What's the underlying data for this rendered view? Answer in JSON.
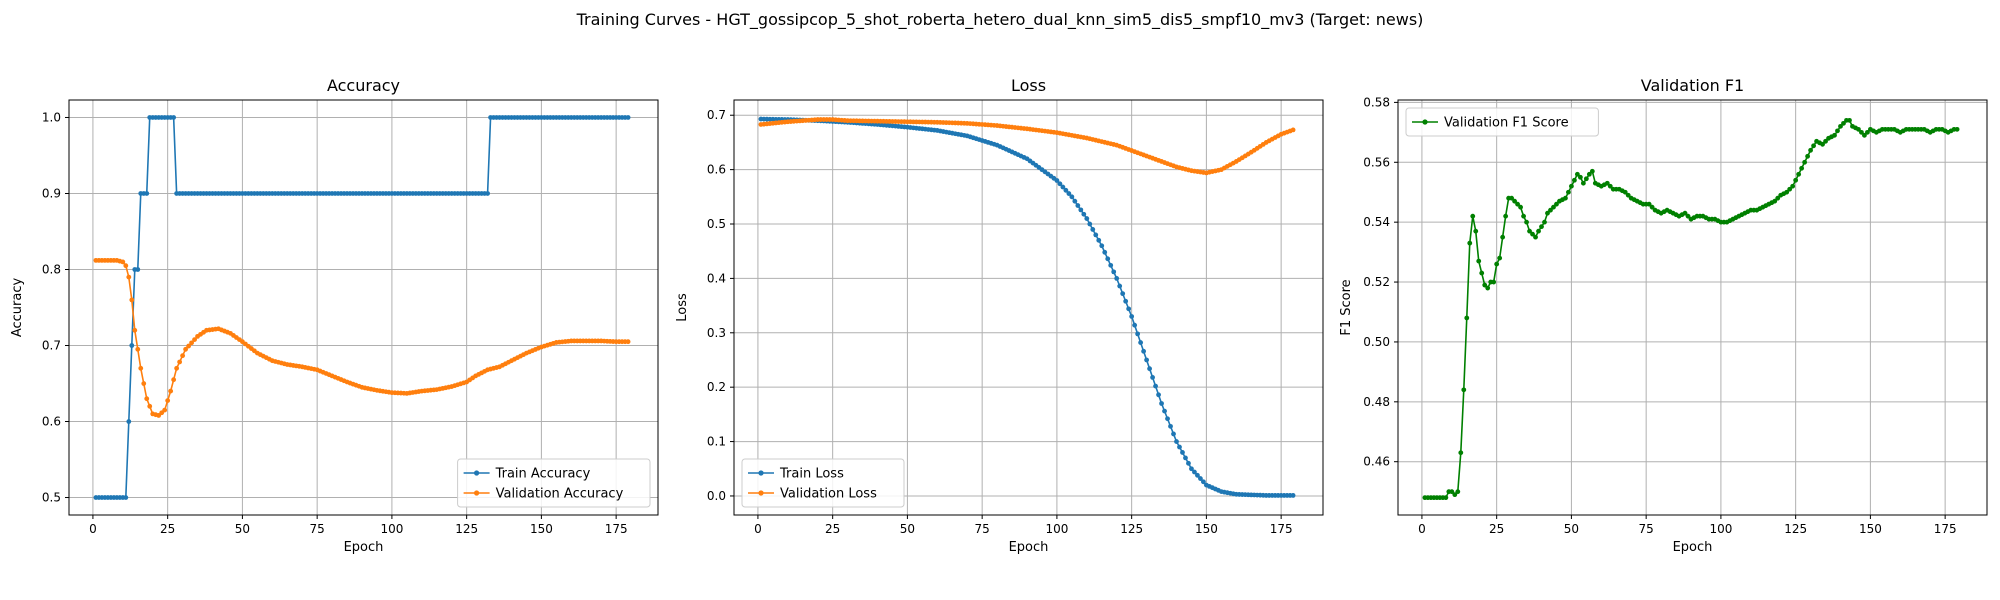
{
  "suptitle": "Training Curves - HGT_gossipcop_5_shot_roberta_hetero_dual_knn_sim5_dis5_smpf10_mv3 (Target: news)",
  "colors": {
    "blue": "#1f77b4",
    "orange": "#ff7f0e",
    "green": "#008000",
    "grid": "#b0b0b0"
  },
  "chart_data": [
    {
      "type": "line",
      "title": "Accuracy",
      "xlabel": "Epoch",
      "ylabel": "Accuracy",
      "xlim": [
        -8,
        189
      ],
      "ylim": [
        0.477,
        1.023
      ],
      "xticks": [
        0,
        25,
        50,
        75,
        100,
        125,
        150,
        175
      ],
      "yticks": [
        0.5,
        0.6,
        0.7,
        0.8,
        0.9,
        1.0
      ],
      "ytick_labels": [
        "0.5",
        "0.6",
        "0.7",
        "0.8",
        "0.9",
        "1.0"
      ],
      "grid": true,
      "legend_position": "lower-right",
      "series": [
        {
          "name": "Train Accuracy",
          "color": "#1f77b4",
          "points": [
            [
              1,
              0.5
            ],
            [
              11,
              0.5
            ],
            [
              12,
              0.6
            ],
            [
              13,
              0.7
            ],
            [
              14,
              0.8
            ],
            [
              15,
              0.8
            ],
            [
              16,
              0.9
            ],
            [
              18,
              0.9
            ],
            [
              19,
              1.0
            ],
            [
              27,
              1.0
            ],
            [
              28,
              0.9
            ],
            [
              132,
              0.9
            ],
            [
              133,
              1.0
            ],
            [
              179,
              1.0
            ]
          ]
        },
        {
          "name": "Validation Accuracy",
          "color": "#ff7f0e",
          "points": [
            [
              1,
              0.812
            ],
            [
              8,
              0.812
            ],
            [
              10,
              0.81
            ],
            [
              11,
              0.805
            ],
            [
              12,
              0.79
            ],
            [
              13,
              0.76
            ],
            [
              14,
              0.72
            ],
            [
              16,
              0.67
            ],
            [
              18,
              0.63
            ],
            [
              20,
              0.61
            ],
            [
              22,
              0.608
            ],
            [
              24,
              0.615
            ],
            [
              26,
              0.64
            ],
            [
              28,
              0.67
            ],
            [
              31,
              0.695
            ],
            [
              35,
              0.712
            ],
            [
              38,
              0.72
            ],
            [
              42,
              0.722
            ],
            [
              46,
              0.716
            ],
            [
              50,
              0.705
            ],
            [
              55,
              0.69
            ],
            [
              60,
              0.68
            ],
            [
              65,
              0.675
            ],
            [
              70,
              0.672
            ],
            [
              75,
              0.668
            ],
            [
              80,
              0.66
            ],
            [
              85,
              0.652
            ],
            [
              90,
              0.645
            ],
            [
              95,
              0.641
            ],
            [
              100,
              0.638
            ],
            [
              105,
              0.637
            ],
            [
              110,
              0.64
            ],
            [
              115,
              0.642
            ],
            [
              120,
              0.646
            ],
            [
              125,
              0.652
            ],
            [
              128,
              0.66
            ],
            [
              132,
              0.668
            ],
            [
              136,
              0.672
            ],
            [
              140,
              0.68
            ],
            [
              145,
              0.69
            ],
            [
              150,
              0.698
            ],
            [
              155,
              0.704
            ],
            [
              160,
              0.706
            ],
            [
              165,
              0.706
            ],
            [
              170,
              0.706
            ],
            [
              175,
              0.705
            ],
            [
              179,
              0.705
            ]
          ]
        }
      ]
    },
    {
      "type": "line",
      "title": "Loss",
      "xlabel": "Epoch",
      "ylabel": "Loss",
      "xlim": [
        -8,
        189
      ],
      "ylim": [
        -0.035,
        0.728
      ],
      "xticks": [
        0,
        25,
        50,
        75,
        100,
        125,
        150,
        175
      ],
      "yticks": [
        0.0,
        0.1,
        0.2,
        0.3,
        0.4,
        0.5,
        0.6,
        0.7
      ],
      "ytick_labels": [
        "0.0",
        "0.1",
        "0.2",
        "0.3",
        "0.4",
        "0.5",
        "0.6",
        "0.7"
      ],
      "grid": true,
      "legend_position": "lower-left",
      "series": [
        {
          "name": "Train Loss",
          "color": "#1f77b4",
          "points": [
            [
              1,
              0.693
            ],
            [
              10,
              0.692
            ],
            [
              20,
              0.69
            ],
            [
              30,
              0.687
            ],
            [
              40,
              0.683
            ],
            [
              50,
              0.678
            ],
            [
              60,
              0.672
            ],
            [
              70,
              0.662
            ],
            [
              80,
              0.645
            ],
            [
              90,
              0.62
            ],
            [
              100,
              0.58
            ],
            [
              105,
              0.55
            ],
            [
              110,
              0.51
            ],
            [
              115,
              0.46
            ],
            [
              120,
              0.4
            ],
            [
              125,
              0.33
            ],
            [
              130,
              0.25
            ],
            [
              135,
              0.17
            ],
            [
              140,
              0.1
            ],
            [
              145,
              0.05
            ],
            [
              150,
              0.02
            ],
            [
              155,
              0.008
            ],
            [
              160,
              0.003
            ],
            [
              170,
              0.001
            ],
            [
              179,
              0.001
            ]
          ]
        },
        {
          "name": "Validation Loss",
          "color": "#ff7f0e",
          "points": [
            [
              1,
              0.683
            ],
            [
              10,
              0.688
            ],
            [
              20,
              0.692
            ],
            [
              25,
              0.692
            ],
            [
              30,
              0.69
            ],
            [
              40,
              0.689
            ],
            [
              50,
              0.688
            ],
            [
              60,
              0.687
            ],
            [
              70,
              0.685
            ],
            [
              80,
              0.681
            ],
            [
              90,
              0.675
            ],
            [
              100,
              0.668
            ],
            [
              110,
              0.658
            ],
            [
              120,
              0.645
            ],
            [
              130,
              0.625
            ],
            [
              140,
              0.605
            ],
            [
              145,
              0.598
            ],
            [
              150,
              0.594
            ],
            [
              155,
              0.6
            ],
            [
              160,
              0.615
            ],
            [
              165,
              0.632
            ],
            [
              170,
              0.65
            ],
            [
              175,
              0.665
            ],
            [
              179,
              0.673
            ]
          ]
        }
      ]
    },
    {
      "type": "line",
      "title": "Validation F1",
      "xlabel": "Epoch",
      "ylabel": "F1 Score",
      "xlim": [
        -8,
        189
      ],
      "ylim": [
        0.4422,
        0.5808
      ],
      "xticks": [
        0,
        25,
        50,
        75,
        100,
        125,
        150,
        175
      ],
      "yticks": [
        0.46,
        0.48,
        0.5,
        0.52,
        0.54,
        0.56,
        0.58
      ],
      "ytick_labels": [
        "0.46",
        "0.48",
        "0.50",
        "0.52",
        "0.54",
        "0.56",
        "0.58"
      ],
      "grid": true,
      "legend_position": "upper-left",
      "series": [
        {
          "name": "Validation F1 Score",
          "color": "#008000",
          "points": [
            [
              1,
              0.448
            ],
            [
              8,
              0.448
            ],
            [
              9,
              0.45
            ],
            [
              10,
              0.45
            ],
            [
              11,
              0.449
            ],
            [
              12,
              0.45
            ],
            [
              13,
              0.463
            ],
            [
              14,
              0.484
            ],
            [
              15,
              0.508
            ],
            [
              16,
              0.533
            ],
            [
              17,
              0.542
            ],
            [
              18,
              0.537
            ],
            [
              19,
              0.527
            ],
            [
              20,
              0.523
            ],
            [
              21,
              0.519
            ],
            [
              22,
              0.518
            ],
            [
              23,
              0.52
            ],
            [
              24,
              0.52
            ],
            [
              25,
              0.526
            ],
            [
              26,
              0.528
            ],
            [
              27,
              0.535
            ],
            [
              28,
              0.542
            ],
            [
              29,
              0.548
            ],
            [
              30,
              0.548
            ],
            [
              31,
              0.547
            ],
            [
              33,
              0.545
            ],
            [
              34,
              0.542
            ],
            [
              35,
              0.54
            ],
            [
              36,
              0.537
            ],
            [
              37,
              0.536
            ],
            [
              38,
              0.535
            ],
            [
              39,
              0.537
            ],
            [
              41,
              0.54
            ],
            [
              42,
              0.543
            ],
            [
              44,
              0.545
            ],
            [
              46,
              0.547
            ],
            [
              48,
              0.548
            ],
            [
              50,
              0.552
            ],
            [
              52,
              0.556
            ],
            [
              53,
              0.555
            ],
            [
              54,
              0.553
            ],
            [
              56,
              0.556
            ],
            [
              57,
              0.557
            ],
            [
              58,
              0.553
            ],
            [
              60,
              0.552
            ],
            [
              62,
              0.553
            ],
            [
              64,
              0.551
            ],
            [
              66,
              0.551
            ],
            [
              68,
              0.55
            ],
            [
              70,
              0.548
            ],
            [
              72,
              0.547
            ],
            [
              74,
              0.546
            ],
            [
              76,
              0.546
            ],
            [
              78,
              0.544
            ],
            [
              80,
              0.543
            ],
            [
              82,
              0.544
            ],
            [
              84,
              0.543
            ],
            [
              86,
              0.542
            ],
            [
              88,
              0.543
            ],
            [
              90,
              0.541
            ],
            [
              92,
              0.542
            ],
            [
              94,
              0.542
            ],
            [
              96,
              0.541
            ],
            [
              98,
              0.541
            ],
            [
              100,
              0.54
            ],
            [
              102,
              0.54
            ],
            [
              104,
              0.541
            ],
            [
              106,
              0.542
            ],
            [
              108,
              0.543
            ],
            [
              110,
              0.544
            ],
            [
              112,
              0.544
            ],
            [
              114,
              0.545
            ],
            [
              116,
              0.546
            ],
            [
              118,
              0.547
            ],
            [
              120,
              0.549
            ],
            [
              122,
              0.55
            ],
            [
              124,
              0.552
            ],
            [
              126,
              0.556
            ],
            [
              128,
              0.56
            ],
            [
              130,
              0.564
            ],
            [
              132,
              0.567
            ],
            [
              134,
              0.566
            ],
            [
              136,
              0.568
            ],
            [
              138,
              0.569
            ],
            [
              140,
              0.572
            ],
            [
              142,
              0.574
            ],
            [
              143,
              0.574
            ],
            [
              144,
              0.572
            ],
            [
              146,
              0.571
            ],
            [
              148,
              0.569
            ],
            [
              150,
              0.571
            ],
            [
              152,
              0.57
            ],
            [
              154,
              0.571
            ],
            [
              156,
              0.571
            ],
            [
              158,
              0.571
            ],
            [
              160,
              0.57
            ],
            [
              162,
              0.571
            ],
            [
              164,
              0.571
            ],
            [
              166,
              0.571
            ],
            [
              168,
              0.571
            ],
            [
              170,
              0.57
            ],
            [
              172,
              0.571
            ],
            [
              174,
              0.571
            ],
            [
              176,
              0.57
            ],
            [
              178,
              0.571
            ],
            [
              179,
              0.571
            ]
          ]
        }
      ]
    }
  ]
}
